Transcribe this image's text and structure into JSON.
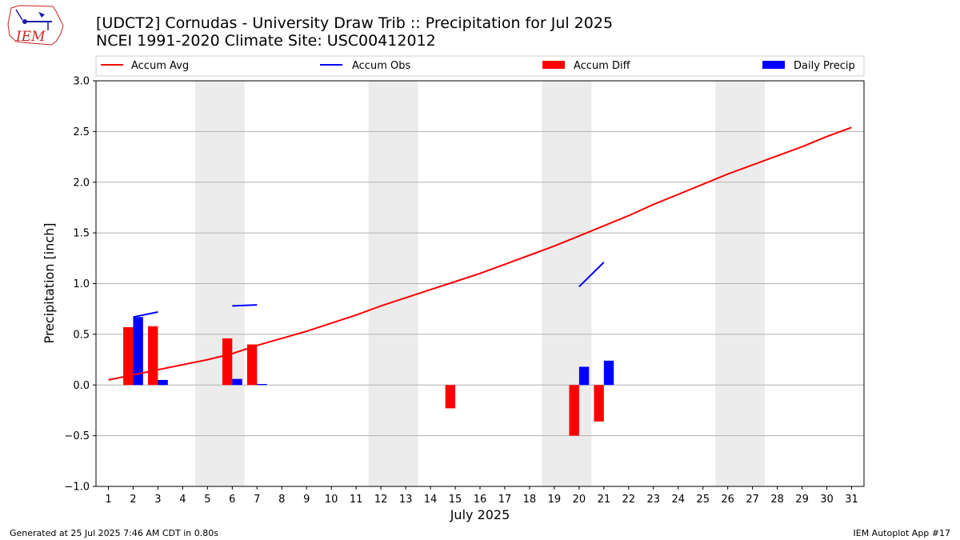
{
  "header": {
    "title_line1": "[UDCT2] Cornudas - University Draw Trib :: Precipitation for Jul 2025",
    "title_line2": "NCEI 1991-2020 Climate Site: USC00412012",
    "logo_text": "IEM"
  },
  "footer": {
    "generated": "Generated at 25 Jul 2025 7:46 AM CDT in 0.80s",
    "app": "IEM Autoplot App #17"
  },
  "chart_data": {
    "type": "bar",
    "xlabel": "July 2025",
    "ylabel": "Precipitation [inch]",
    "xlim": [
      0.5,
      31.5
    ],
    "ylim": [
      -1.0,
      3.0
    ],
    "grid": true,
    "legend_position": "top",
    "x_ticks": [
      1,
      2,
      3,
      4,
      5,
      6,
      7,
      8,
      9,
      10,
      11,
      12,
      13,
      14,
      15,
      16,
      17,
      18,
      19,
      20,
      21,
      22,
      23,
      24,
      25,
      26,
      27,
      28,
      29,
      30,
      31
    ],
    "y_ticks": [
      -1.0,
      -0.5,
      0.0,
      0.5,
      1.0,
      1.5,
      2.0,
      2.5,
      3.0
    ],
    "y_tick_labels": [
      "−1.0",
      "−0.5",
      "0.0",
      "0.5",
      "1.0",
      "1.5",
      "2.0",
      "2.5",
      "3.0"
    ],
    "weekend_shading": [
      [
        4.5,
        6.5
      ],
      [
        11.5,
        13.5
      ],
      [
        18.5,
        20.5
      ],
      [
        25.5,
        27.5
      ]
    ],
    "legend": [
      {
        "label": "Accum Avg",
        "kind": "line",
        "color": "#ff0000"
      },
      {
        "label": "Accum Obs",
        "kind": "line",
        "color": "#0000ff"
      },
      {
        "label": "Accum Diff",
        "kind": "bar",
        "color": "#ff0000"
      },
      {
        "label": "Daily Precip",
        "kind": "bar",
        "color": "#0000ff"
      }
    ],
    "series": {
      "accum_avg": {
        "name": "Accum Avg",
        "color": "#ff0000",
        "x": [
          1,
          2,
          3,
          4,
          5,
          6,
          7,
          8,
          9,
          10,
          11,
          12,
          13,
          14,
          15,
          16,
          17,
          18,
          19,
          20,
          21,
          22,
          23,
          24,
          25,
          26,
          27,
          28,
          29,
          30,
          31
        ],
        "y": [
          0.05,
          0.1,
          0.15,
          0.2,
          0.25,
          0.31,
          0.39,
          0.46,
          0.53,
          0.61,
          0.69,
          0.78,
          0.86,
          0.94,
          1.02,
          1.1,
          1.19,
          1.28,
          1.37,
          1.47,
          1.57,
          1.67,
          1.78,
          1.88,
          1.98,
          2.08,
          2.17,
          2.26,
          2.35,
          2.45,
          2.54
        ]
      },
      "accum_obs": {
        "name": "Accum Obs",
        "color": "#0000ff",
        "segments": [
          {
            "x": [
              2,
              3
            ],
            "y": [
              0.67,
              0.72
            ]
          },
          {
            "x": [
              6,
              7
            ],
            "y": [
              0.78,
              0.79
            ]
          },
          {
            "x": [
              20,
              21
            ],
            "y": [
              0.97,
              1.21
            ]
          }
        ]
      },
      "accum_diff": {
        "name": "Accum Diff",
        "color": "#ff0000",
        "x": [
          2,
          3,
          6,
          7,
          15,
          20,
          21
        ],
        "y": [
          0.57,
          0.58,
          0.46,
          0.4,
          -0.23,
          -0.5,
          -0.36
        ]
      },
      "daily_precip": {
        "name": "Daily Precip",
        "color": "#0000ff",
        "x": [
          2,
          3,
          6,
          7,
          20,
          21
        ],
        "y": [
          0.67,
          0.05,
          0.06,
          0.01,
          0.18,
          0.24
        ]
      }
    }
  }
}
